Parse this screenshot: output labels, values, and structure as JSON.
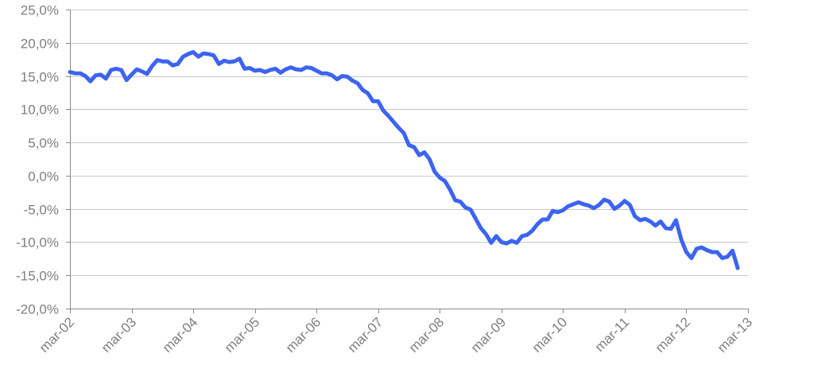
{
  "chart_data": {
    "type": "line",
    "title": "",
    "xlabel": "",
    "ylabel": "",
    "ylim": [
      -20,
      25
    ],
    "yticks": [
      25,
      20,
      15,
      10,
      5,
      0,
      -5,
      -10,
      -15,
      -20
    ],
    "ytick_labels": [
      "25,0%",
      "20,0%",
      "15,0%",
      "10,0%",
      "5,0%",
      "0,0%",
      "-5,0%",
      "-10,0%",
      "-15,0%",
      "-20,0%"
    ],
    "xlim": [
      "2002-03",
      "2013-03"
    ],
    "xticks": [
      "2002-03",
      "2003-03",
      "2004-03",
      "2005-03",
      "2006-03",
      "2007-03",
      "2008-03",
      "2009-03",
      "2010-03",
      "2011-03",
      "2012-03",
      "2013-03"
    ],
    "xtick_labels": [
      "mar-02",
      "mar-03",
      "mar-04",
      "mar-05",
      "mar-06",
      "mar-07",
      "mar-08",
      "mar-09",
      "mar-10",
      "mar-11",
      "mar-12",
      "mar-13"
    ],
    "grid": true,
    "series_color": "#3c64f0",
    "series": [
      {
        "values": [
          [
            "2002-03",
            15.6
          ],
          [
            "2002-04",
            15.4
          ],
          [
            "2002-05",
            15.4
          ],
          [
            "2002-06",
            15.0
          ],
          [
            "2002-07",
            14.2
          ],
          [
            "2002-08",
            15.1
          ],
          [
            "2002-09",
            15.2
          ],
          [
            "2002-10",
            14.6
          ],
          [
            "2002-11",
            15.9
          ],
          [
            "2002-12",
            16.1
          ],
          [
            "2003-01",
            15.9
          ],
          [
            "2003-02",
            14.4
          ],
          [
            "2003-03",
            15.2
          ],
          [
            "2003-04",
            16.0
          ],
          [
            "2003-05",
            15.7
          ],
          [
            "2003-06",
            15.3
          ],
          [
            "2003-07",
            16.5
          ],
          [
            "2003-08",
            17.4
          ],
          [
            "2003-09",
            17.2
          ],
          [
            "2003-10",
            17.2
          ],
          [
            "2003-11",
            16.6
          ],
          [
            "2003-12",
            16.8
          ],
          [
            "2004-01",
            17.9
          ],
          [
            "2004-02",
            18.3
          ],
          [
            "2004-03",
            18.6
          ],
          [
            "2004-04",
            17.9
          ],
          [
            "2004-05",
            18.4
          ],
          [
            "2004-06",
            18.3
          ],
          [
            "2004-07",
            18.1
          ],
          [
            "2004-08",
            16.8
          ],
          [
            "2004-09",
            17.3
          ],
          [
            "2004-10",
            17.1
          ],
          [
            "2004-11",
            17.2
          ],
          [
            "2004-12",
            17.6
          ],
          [
            "2005-01",
            16.1
          ],
          [
            "2005-02",
            16.2
          ],
          [
            "2005-03",
            15.8
          ],
          [
            "2005-04",
            15.9
          ],
          [
            "2005-05",
            15.6
          ],
          [
            "2005-06",
            15.9
          ],
          [
            "2005-07",
            16.1
          ],
          [
            "2005-08",
            15.5
          ],
          [
            "2005-09",
            16.0
          ],
          [
            "2005-10",
            16.3
          ],
          [
            "2005-11",
            16.0
          ],
          [
            "2005-12",
            15.9
          ],
          [
            "2006-01",
            16.3
          ],
          [
            "2006-02",
            16.2
          ],
          [
            "2006-03",
            15.8
          ],
          [
            "2006-04",
            15.4
          ],
          [
            "2006-05",
            15.4
          ],
          [
            "2006-06",
            15.1
          ],
          [
            "2006-07",
            14.5
          ],
          [
            "2006-08",
            15.0
          ],
          [
            "2006-09",
            14.9
          ],
          [
            "2006-10",
            14.3
          ],
          [
            "2006-11",
            13.9
          ],
          [
            "2006-12",
            12.9
          ],
          [
            "2007-01",
            12.4
          ],
          [
            "2007-02",
            11.2
          ],
          [
            "2007-03",
            11.2
          ],
          [
            "2007-04",
            9.8
          ],
          [
            "2007-05",
            9.0
          ],
          [
            "2007-06",
            8.1
          ],
          [
            "2007-07",
            7.2
          ],
          [
            "2007-08",
            6.4
          ],
          [
            "2007-09",
            4.6
          ],
          [
            "2007-10",
            4.3
          ],
          [
            "2007-11",
            3.1
          ],
          [
            "2007-12",
            3.5
          ],
          [
            "2008-01",
            2.5
          ],
          [
            "2008-02",
            0.6
          ],
          [
            "2008-03",
            -0.3
          ],
          [
            "2008-04",
            -0.8
          ],
          [
            "2008-05",
            -2.1
          ],
          [
            "2008-06",
            -3.7
          ],
          [
            "2008-07",
            -3.9
          ],
          [
            "2008-08",
            -4.8
          ],
          [
            "2008-09",
            -5.1
          ],
          [
            "2008-10",
            -6.5
          ],
          [
            "2008-11",
            -7.9
          ],
          [
            "2008-12",
            -8.8
          ],
          [
            "2009-01",
            -10.1
          ],
          [
            "2009-02",
            -9.1
          ],
          [
            "2009-03",
            -10.0
          ],
          [
            "2009-04",
            -10.2
          ],
          [
            "2009-05",
            -9.8
          ],
          [
            "2009-06",
            -10.1
          ],
          [
            "2009-07",
            -9.1
          ],
          [
            "2009-08",
            -8.9
          ],
          [
            "2009-09",
            -8.3
          ],
          [
            "2009-10",
            -7.3
          ],
          [
            "2009-11",
            -6.6
          ],
          [
            "2009-12",
            -6.6
          ],
          [
            "2010-01",
            -5.3
          ],
          [
            "2010-02",
            -5.5
          ],
          [
            "2010-03",
            -5.2
          ],
          [
            "2010-04",
            -4.6
          ],
          [
            "2010-05",
            -4.3
          ],
          [
            "2010-06",
            -4.0
          ],
          [
            "2010-07",
            -4.3
          ],
          [
            "2010-08",
            -4.5
          ],
          [
            "2010-09",
            -4.9
          ],
          [
            "2010-10",
            -4.4
          ],
          [
            "2010-11",
            -3.6
          ],
          [
            "2010-12",
            -3.9
          ],
          [
            "2011-01",
            -5.0
          ],
          [
            "2011-02",
            -4.5
          ],
          [
            "2011-03",
            -3.8
          ],
          [
            "2011-04",
            -4.4
          ],
          [
            "2011-05",
            -6.1
          ],
          [
            "2011-06",
            -6.7
          ],
          [
            "2011-07",
            -6.5
          ],
          [
            "2011-08",
            -6.9
          ],
          [
            "2011-09",
            -7.5
          ],
          [
            "2011-10",
            -6.9
          ],
          [
            "2011-11",
            -7.9
          ],
          [
            "2011-12",
            -8.0
          ],
          [
            "2012-01",
            -6.7
          ],
          [
            "2012-02",
            -9.6
          ],
          [
            "2012-03",
            -11.5
          ],
          [
            "2012-04",
            -12.4
          ],
          [
            "2012-05",
            -11.0
          ],
          [
            "2012-06",
            -10.8
          ],
          [
            "2012-07",
            -11.2
          ],
          [
            "2012-08",
            -11.5
          ],
          [
            "2012-09",
            -11.5
          ],
          [
            "2012-10",
            -12.4
          ],
          [
            "2012-11",
            -12.2
          ],
          [
            "2012-12",
            -11.3
          ],
          [
            "2013-01",
            -13.9
          ]
        ]
      }
    ]
  }
}
